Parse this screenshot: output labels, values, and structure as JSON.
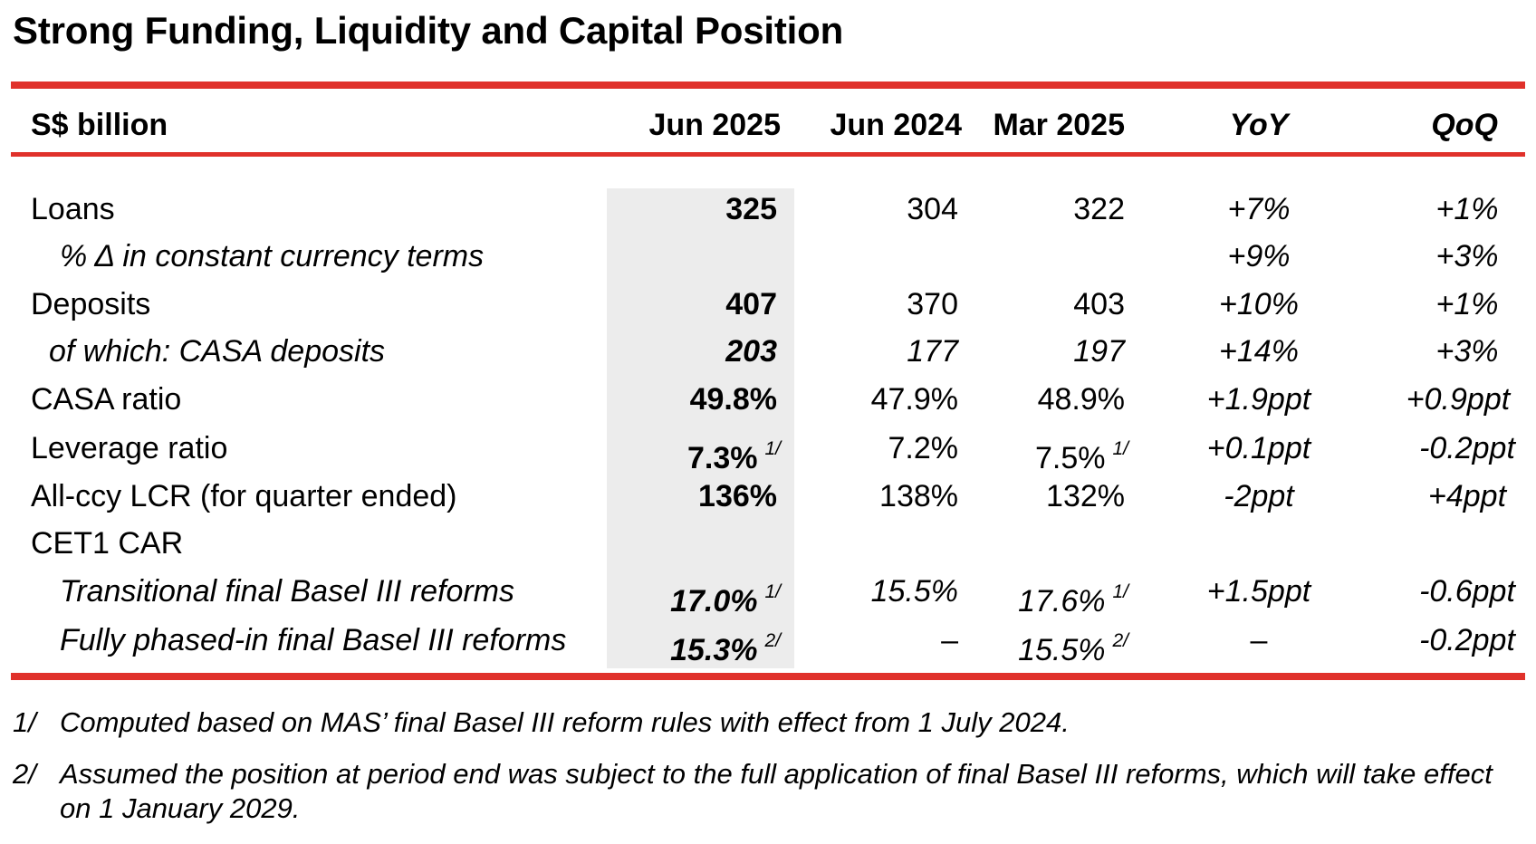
{
  "title": "Strong Funding, Liquidity and Capital Position",
  "header": {
    "label": "S$ billion",
    "cols": [
      "Jun 2025",
      "Jun 2024",
      "Mar 2025",
      "YoY",
      "QoQ"
    ]
  },
  "rows": [
    {
      "label": "Loans",
      "jun2025": "325",
      "jun2024": "304",
      "mar2025": "322",
      "yoy": "+7%",
      "qoq": "+1%"
    },
    {
      "label": "% Δ in constant currency terms",
      "jun2025": "",
      "jun2024": "",
      "mar2025": "",
      "yoy": "+9%",
      "qoq": "+3%"
    },
    {
      "label": "Deposits",
      "jun2025": "407",
      "jun2024": "370",
      "mar2025": "403",
      "yoy": "+10%",
      "qoq": "+1%"
    },
    {
      "label": "of which: CASA deposits",
      "jun2025": "203",
      "jun2024": "177",
      "mar2025": "197",
      "yoy": "+14%",
      "qoq": "+3%"
    },
    {
      "label": "CASA ratio",
      "jun2025": "49.8%",
      "jun2024": "47.9%",
      "mar2025": "48.9%",
      "yoy": "+1.9ppt",
      "qoq": "+0.9ppt"
    },
    {
      "label": "Leverage ratio",
      "jun2025": "7.3%",
      "jun2025_fn": "1/",
      "jun2024": "7.2%",
      "mar2025": "7.5%",
      "mar2025_fn": "1/",
      "yoy": "+0.1ppt",
      "qoq": "-0.2ppt"
    },
    {
      "label": "All-ccy LCR (for quarter ended)",
      "jun2025": "136%",
      "jun2024": "138%",
      "mar2025": "132%",
      "yoy": "-2ppt",
      "qoq": "+4ppt"
    },
    {
      "label": "CET1 CAR",
      "jun2025": "",
      "jun2024": "",
      "mar2025": "",
      "yoy": "",
      "qoq": ""
    },
    {
      "label": "Transitional final Basel III reforms",
      "jun2025": "17.0%",
      "jun2025_fn": "1/",
      "jun2024": "15.5%",
      "mar2025": "17.6%",
      "mar2025_fn": "1/",
      "yoy": "+1.5ppt",
      "qoq": "-0.6ppt"
    },
    {
      "label": "Fully phased-in final Basel III reforms",
      "jun2025": "15.3%",
      "jun2025_fn": "2/",
      "jun2024": "–",
      "mar2025": "15.5%",
      "mar2025_fn": "2/",
      "yoy": "–",
      "qoq": "-0.2ppt"
    }
  ],
  "footnotes": [
    {
      "mark": "1/",
      "text": "Computed based on MAS’ final Basel III reform rules with effect from 1 July 2024."
    },
    {
      "mark": "2/",
      "text": "Assumed the position at period end was subject to the full application of final Basel III reforms, which will take effect on 1 January 2029."
    }
  ],
  "colors": {
    "accent_red": "#e0312b",
    "highlight_column": "#ececec"
  }
}
